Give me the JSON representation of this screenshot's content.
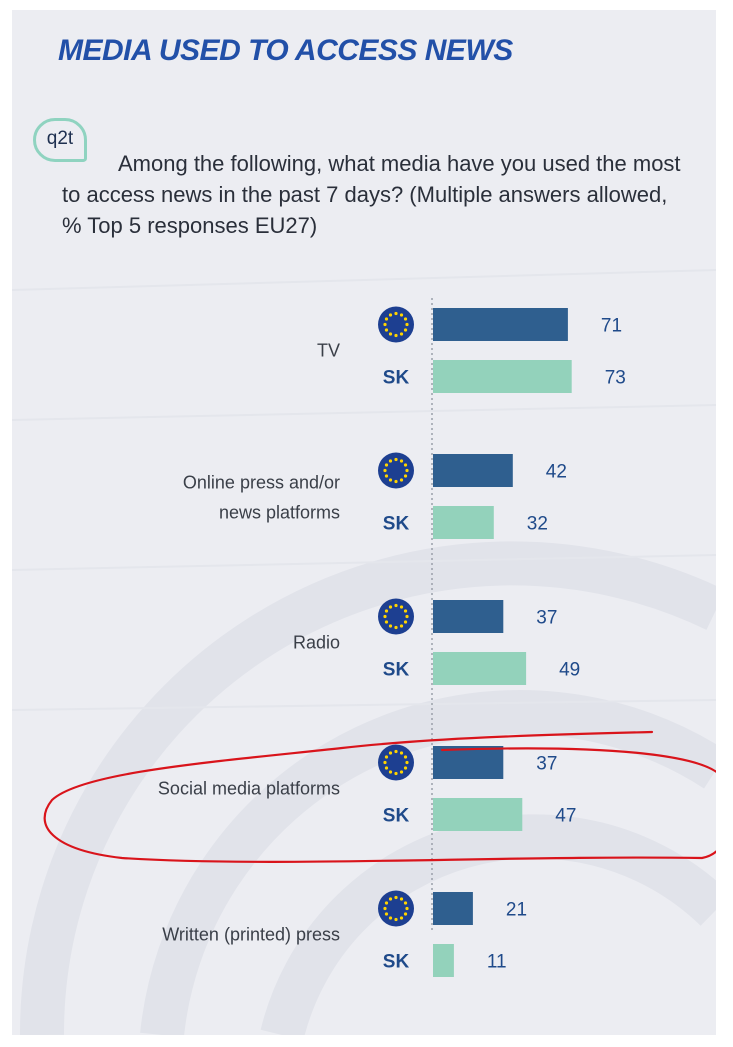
{
  "header": {
    "title": "MEDIA USED TO ACCESS NEWS",
    "question_code": "q2t",
    "question_text": "Among the following, what media have you used the most to access news in the past 7 days? (Multiple answers allowed, % Top 5 responses EU27)"
  },
  "colors": {
    "eu": "#2f5f8f",
    "sk": "#93d2bb",
    "title": "#2250a8",
    "annotation": "#d9141b"
  },
  "chart_data": {
    "type": "bar",
    "orientation": "horizontal",
    "categories": [
      "TV",
      "Online press and/or news platforms",
      "Radio",
      "Social media platforms",
      "Written (printed) press"
    ],
    "series": [
      {
        "name": "",
        "icon": "eu-flag-icon",
        "values": [
          71,
          42,
          37,
          37,
          21
        ]
      },
      {
        "name": "SK",
        "values": [
          73,
          32,
          49,
          47,
          11
        ]
      }
    ],
    "xlim": [
      0,
      100
    ],
    "grid": false,
    "annotation": {
      "type": "hand-drawn ellipse",
      "category": "Social media platforms"
    }
  }
}
